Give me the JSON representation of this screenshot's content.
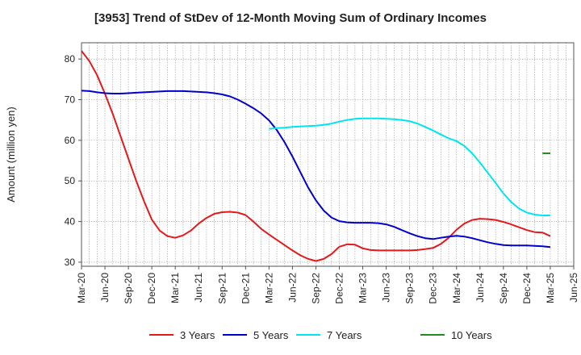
{
  "chart_data": {
    "type": "line",
    "title": "[3953]  Trend of StDev of 12-Month Moving Sum of Ordinary Incomes",
    "xlabel": "",
    "ylabel": "Amount (million yen)",
    "ylim": [
      29,
      84
    ],
    "yticks": [
      30,
      40,
      50,
      60,
      70,
      80
    ],
    "xticks": [
      "Mar-20",
      "Jun-20",
      "Sep-20",
      "Dec-20",
      "Mar-21",
      "Jun-21",
      "Sep-21",
      "Dec-21",
      "Mar-22",
      "Jun-22",
      "Sep-22",
      "Dec-22",
      "Mar-23",
      "Jun-23",
      "Sep-23",
      "Dec-23",
      "Mar-24",
      "Jun-24",
      "Sep-24",
      "Dec-24",
      "Mar-25",
      "Jun-25"
    ],
    "grid": true,
    "legend_position": "bottom",
    "series": [
      {
        "name": "3 Years",
        "color": "#e31a1c",
        "x": [
          "2020-03",
          "2020-04",
          "2020-05",
          "2020-06",
          "2020-07",
          "2020-08",
          "2020-09",
          "2020-10",
          "2020-11",
          "2020-12",
          "2021-01",
          "2021-02",
          "2021-03",
          "2021-04",
          "2021-05",
          "2021-06",
          "2021-07",
          "2021-08",
          "2021-09",
          "2021-10",
          "2021-11",
          "2021-12",
          "2022-01",
          "2022-02",
          "2022-03",
          "2022-04",
          "2022-05",
          "2022-06",
          "2022-07",
          "2022-08",
          "2022-09",
          "2022-10",
          "2022-11",
          "2022-12",
          "2023-01",
          "2023-02",
          "2023-03",
          "2023-04",
          "2023-05",
          "2023-06",
          "2023-07",
          "2023-08",
          "2023-09",
          "2023-10",
          "2023-11",
          "2023-12",
          "2024-01",
          "2024-02",
          "2024-03",
          "2024-04",
          "2024-05",
          "2024-06",
          "2024-07",
          "2024-08",
          "2024-09",
          "2024-10",
          "2024-11",
          "2024-12",
          "2025-01",
          "2025-02",
          "2025-03"
        ],
        "values": [
          82.0,
          79.5,
          76.0,
          71.5,
          66.5,
          61.0,
          55.5,
          50.0,
          45.0,
          40.5,
          37.8,
          36.4,
          36.0,
          36.6,
          37.8,
          39.5,
          40.9,
          41.9,
          42.3,
          42.4,
          42.2,
          41.6,
          40.0,
          38.2,
          36.8,
          35.5,
          34.2,
          32.9,
          31.7,
          30.8,
          30.3,
          30.8,
          32.0,
          33.8,
          34.4,
          34.3,
          33.4,
          33.0,
          32.9,
          32.9,
          32.9,
          32.9,
          32.9,
          33.0,
          33.2,
          33.5,
          34.5,
          36.0,
          38.0,
          39.5,
          40.4,
          40.7,
          40.6,
          40.4,
          39.9,
          39.3,
          38.6,
          37.9,
          37.4,
          37.3,
          36.4
        ]
      },
      {
        "name": "5 Years",
        "color": "#0000cd",
        "x": [
          "2020-03",
          "2020-04",
          "2020-05",
          "2020-06",
          "2020-07",
          "2020-08",
          "2020-09",
          "2020-10",
          "2020-11",
          "2020-12",
          "2021-01",
          "2021-02",
          "2021-03",
          "2021-04",
          "2021-05",
          "2021-06",
          "2021-07",
          "2021-08",
          "2021-09",
          "2021-10",
          "2021-11",
          "2021-12",
          "2022-01",
          "2022-02",
          "2022-03",
          "2022-04",
          "2022-05",
          "2022-06",
          "2022-07",
          "2022-08",
          "2022-09",
          "2022-10",
          "2022-11",
          "2022-12",
          "2023-01",
          "2023-02",
          "2023-03",
          "2023-04",
          "2023-05",
          "2023-06",
          "2023-07",
          "2023-08",
          "2023-09",
          "2023-10",
          "2023-11",
          "2023-12",
          "2024-01",
          "2024-02",
          "2024-03",
          "2024-04",
          "2024-05",
          "2024-06",
          "2024-07",
          "2024-08",
          "2024-09",
          "2024-10",
          "2024-11",
          "2024-12",
          "2025-01",
          "2025-02",
          "2025-03"
        ],
        "values": [
          72.2,
          72.1,
          71.8,
          71.6,
          71.5,
          71.5,
          71.6,
          71.7,
          71.8,
          71.9,
          72.0,
          72.1,
          72.1,
          72.1,
          72.0,
          71.9,
          71.8,
          71.6,
          71.3,
          70.8,
          70.0,
          69.0,
          67.9,
          66.6,
          64.9,
          62.5,
          59.5,
          56.0,
          52.2,
          48.4,
          45.2,
          42.7,
          41.0,
          40.1,
          39.8,
          39.7,
          39.7,
          39.7,
          39.6,
          39.3,
          38.7,
          37.9,
          37.1,
          36.4,
          35.9,
          35.7,
          36.0,
          36.3,
          36.5,
          36.3,
          35.9,
          35.4,
          34.9,
          34.5,
          34.2,
          34.1,
          34.1,
          34.1,
          34.0,
          33.9,
          33.7
        ]
      },
      {
        "name": "7 Years",
        "color": "#00e5ee",
        "x": [
          "2022-03",
          "2022-04",
          "2022-05",
          "2022-06",
          "2022-07",
          "2022-08",
          "2022-09",
          "2022-10",
          "2022-11",
          "2022-12",
          "2023-01",
          "2023-02",
          "2023-03",
          "2023-04",
          "2023-05",
          "2023-06",
          "2023-07",
          "2023-08",
          "2023-09",
          "2023-10",
          "2023-11",
          "2023-12",
          "2024-01",
          "2024-02",
          "2024-03",
          "2024-04",
          "2024-05",
          "2024-06",
          "2024-07",
          "2024-08",
          "2024-09",
          "2024-10",
          "2024-11",
          "2024-12",
          "2025-01",
          "2025-02",
          "2025-03"
        ],
        "values": [
          62.8,
          63.0,
          63.1,
          63.3,
          63.4,
          63.5,
          63.6,
          63.8,
          64.1,
          64.6,
          65.0,
          65.3,
          65.4,
          65.4,
          65.4,
          65.3,
          65.2,
          65.0,
          64.7,
          64.1,
          63.3,
          62.4,
          61.4,
          60.5,
          59.8,
          58.6,
          56.8,
          54.5,
          52.0,
          49.5,
          46.9,
          44.8,
          43.2,
          42.2,
          41.7,
          41.5,
          41.5
        ]
      },
      {
        "name": "10 Years",
        "color": "#228b22",
        "x": [
          "2025-02",
          "2025-03"
        ],
        "values": [
          56.8,
          56.8
        ]
      }
    ]
  }
}
